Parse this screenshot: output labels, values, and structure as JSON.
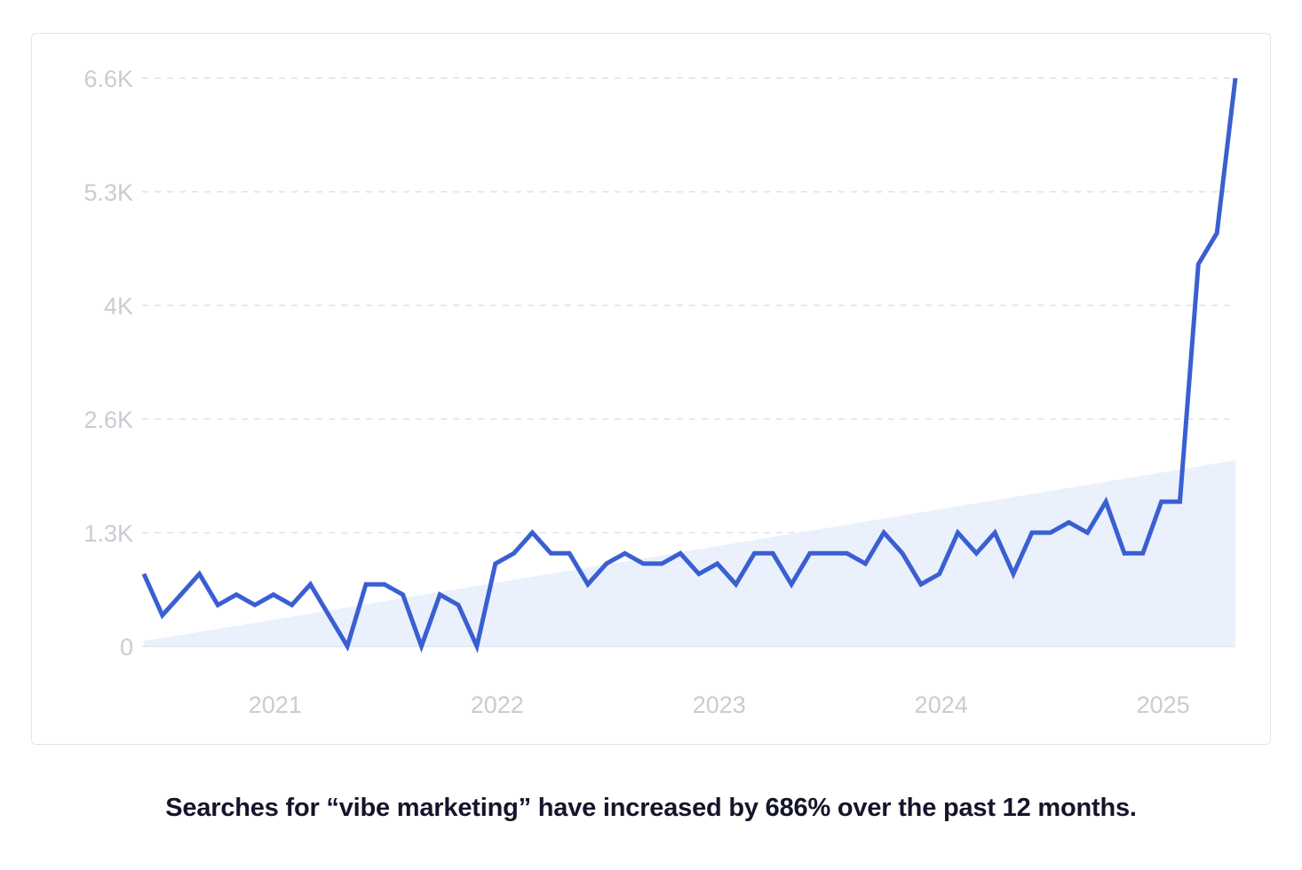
{
  "caption": "Searches for “vibe marketing” have increased by 686% over the past 12 months.",
  "colors": {
    "line": "#3a5fd1",
    "area": "#e6eefb",
    "grid": "#dfe2e8",
    "tick": "#c9ccd3"
  },
  "chart_data": {
    "type": "line",
    "title": "",
    "xlabel": "",
    "ylabel": "",
    "x_start": "2020-06",
    "x_step": "month",
    "ylim": [
      0,
      6600
    ],
    "y_ticks": [
      {
        "value": 0,
        "label": "0"
      },
      {
        "value": 1320,
        "label": "1.3K"
      },
      {
        "value": 2640,
        "label": "2.6K"
      },
      {
        "value": 3960,
        "label": "4K"
      },
      {
        "value": 5280,
        "label": "5.3K"
      },
      {
        "value": 6600,
        "label": "6.6K"
      }
    ],
    "x_ticks": [
      {
        "value": "2021-01",
        "label": "2021"
      },
      {
        "value": "2022-01",
        "label": "2022"
      },
      {
        "value": "2023-01",
        "label": "2023"
      },
      {
        "value": "2024-01",
        "label": "2024"
      },
      {
        "value": "2025-01",
        "label": "2025"
      }
    ],
    "grid": "horizontal dashed",
    "series": [
      {
        "values": [
          840,
          360,
          600,
          840,
          480,
          600,
          480,
          600,
          480,
          720,
          360,
          0,
          720,
          720,
          600,
          0,
          600,
          480,
          0,
          960,
          1080,
          1320,
          1080,
          1080,
          720,
          960,
          1080,
          960,
          960,
          1080,
          840,
          960,
          720,
          1080,
          1080,
          720,
          1080,
          1080,
          1080,
          960,
          1320,
          1080,
          720,
          840,
          1320,
          1080,
          1320,
          840,
          1320,
          1320,
          1440,
          1320,
          1680,
          1080,
          1080,
          1680,
          1680,
          4440,
          4800,
          6600
        ]
      }
    ],
    "trend": {
      "start": 60,
      "end": 2160
    }
  }
}
